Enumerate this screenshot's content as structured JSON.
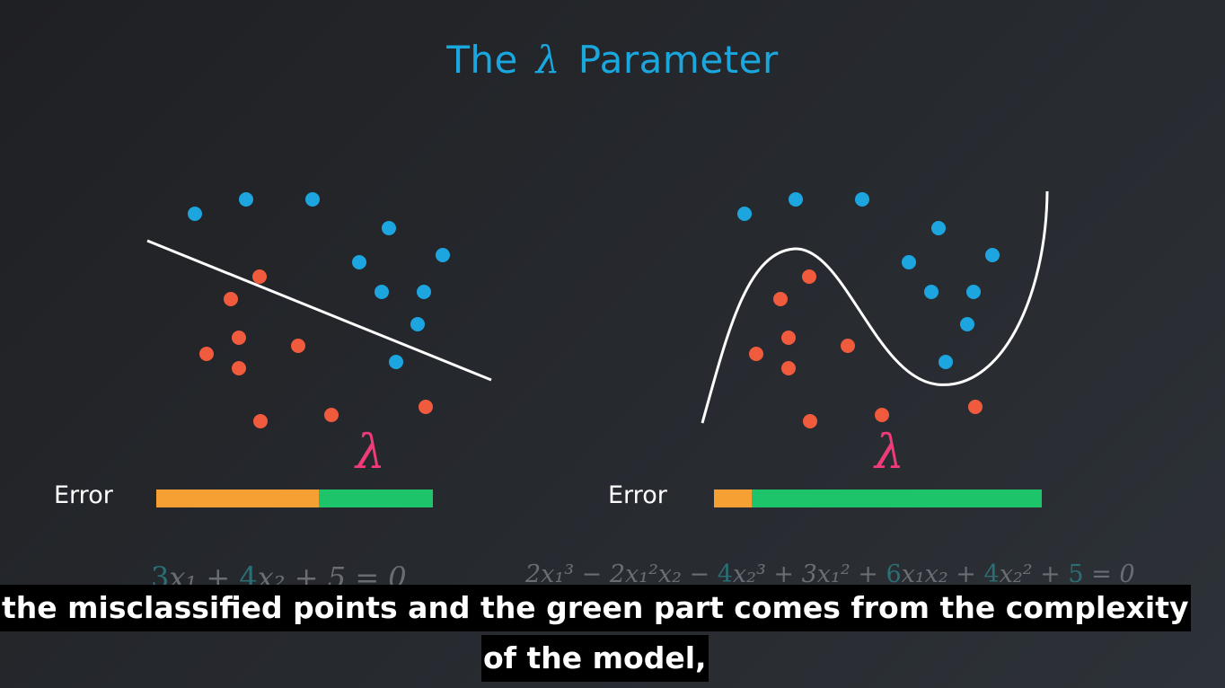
{
  "title": {
    "prefix": "The",
    "symbol": "λ",
    "suffix": "Parameter"
  },
  "colors": {
    "blue_point": "#1ca5df",
    "red_point": "#f05a3d",
    "error_orange": "#f6a033",
    "complexity_green": "#1ec46a",
    "lambda_pink": "#ef3c78"
  },
  "left_panel": {
    "model": "linear",
    "lambda_symbol": "λ",
    "error_label": "Error",
    "error_bar": {
      "misclassification_fraction": 0.59,
      "complexity_fraction": 0.41
    },
    "equation": {
      "c1": "3",
      "t1": "x₁ +",
      "c2": "4",
      "t2": "x₂ +",
      "c3": "5",
      "t3": "= 0"
    }
  },
  "right_panel": {
    "model": "polynomial",
    "lambda_symbol": "λ",
    "error_label": "Error",
    "error_bar": {
      "misclassification_fraction": 0.115,
      "complexity_fraction": 0.885
    },
    "equation": {
      "t1": "2x₁³ − 2x₁²x₂ − ",
      "c1": "4",
      "t2": "x₂³ + 3x₁² + ",
      "c2": "6",
      "t3": "x₁x₂ + ",
      "c3": "4",
      "t4": "x₂² + ",
      "c4": "5",
      "t5": " = 0"
    }
  },
  "caption": {
    "line1": "the misclassified points and the green part comes from the complexity",
    "line2": "of the model,"
  }
}
